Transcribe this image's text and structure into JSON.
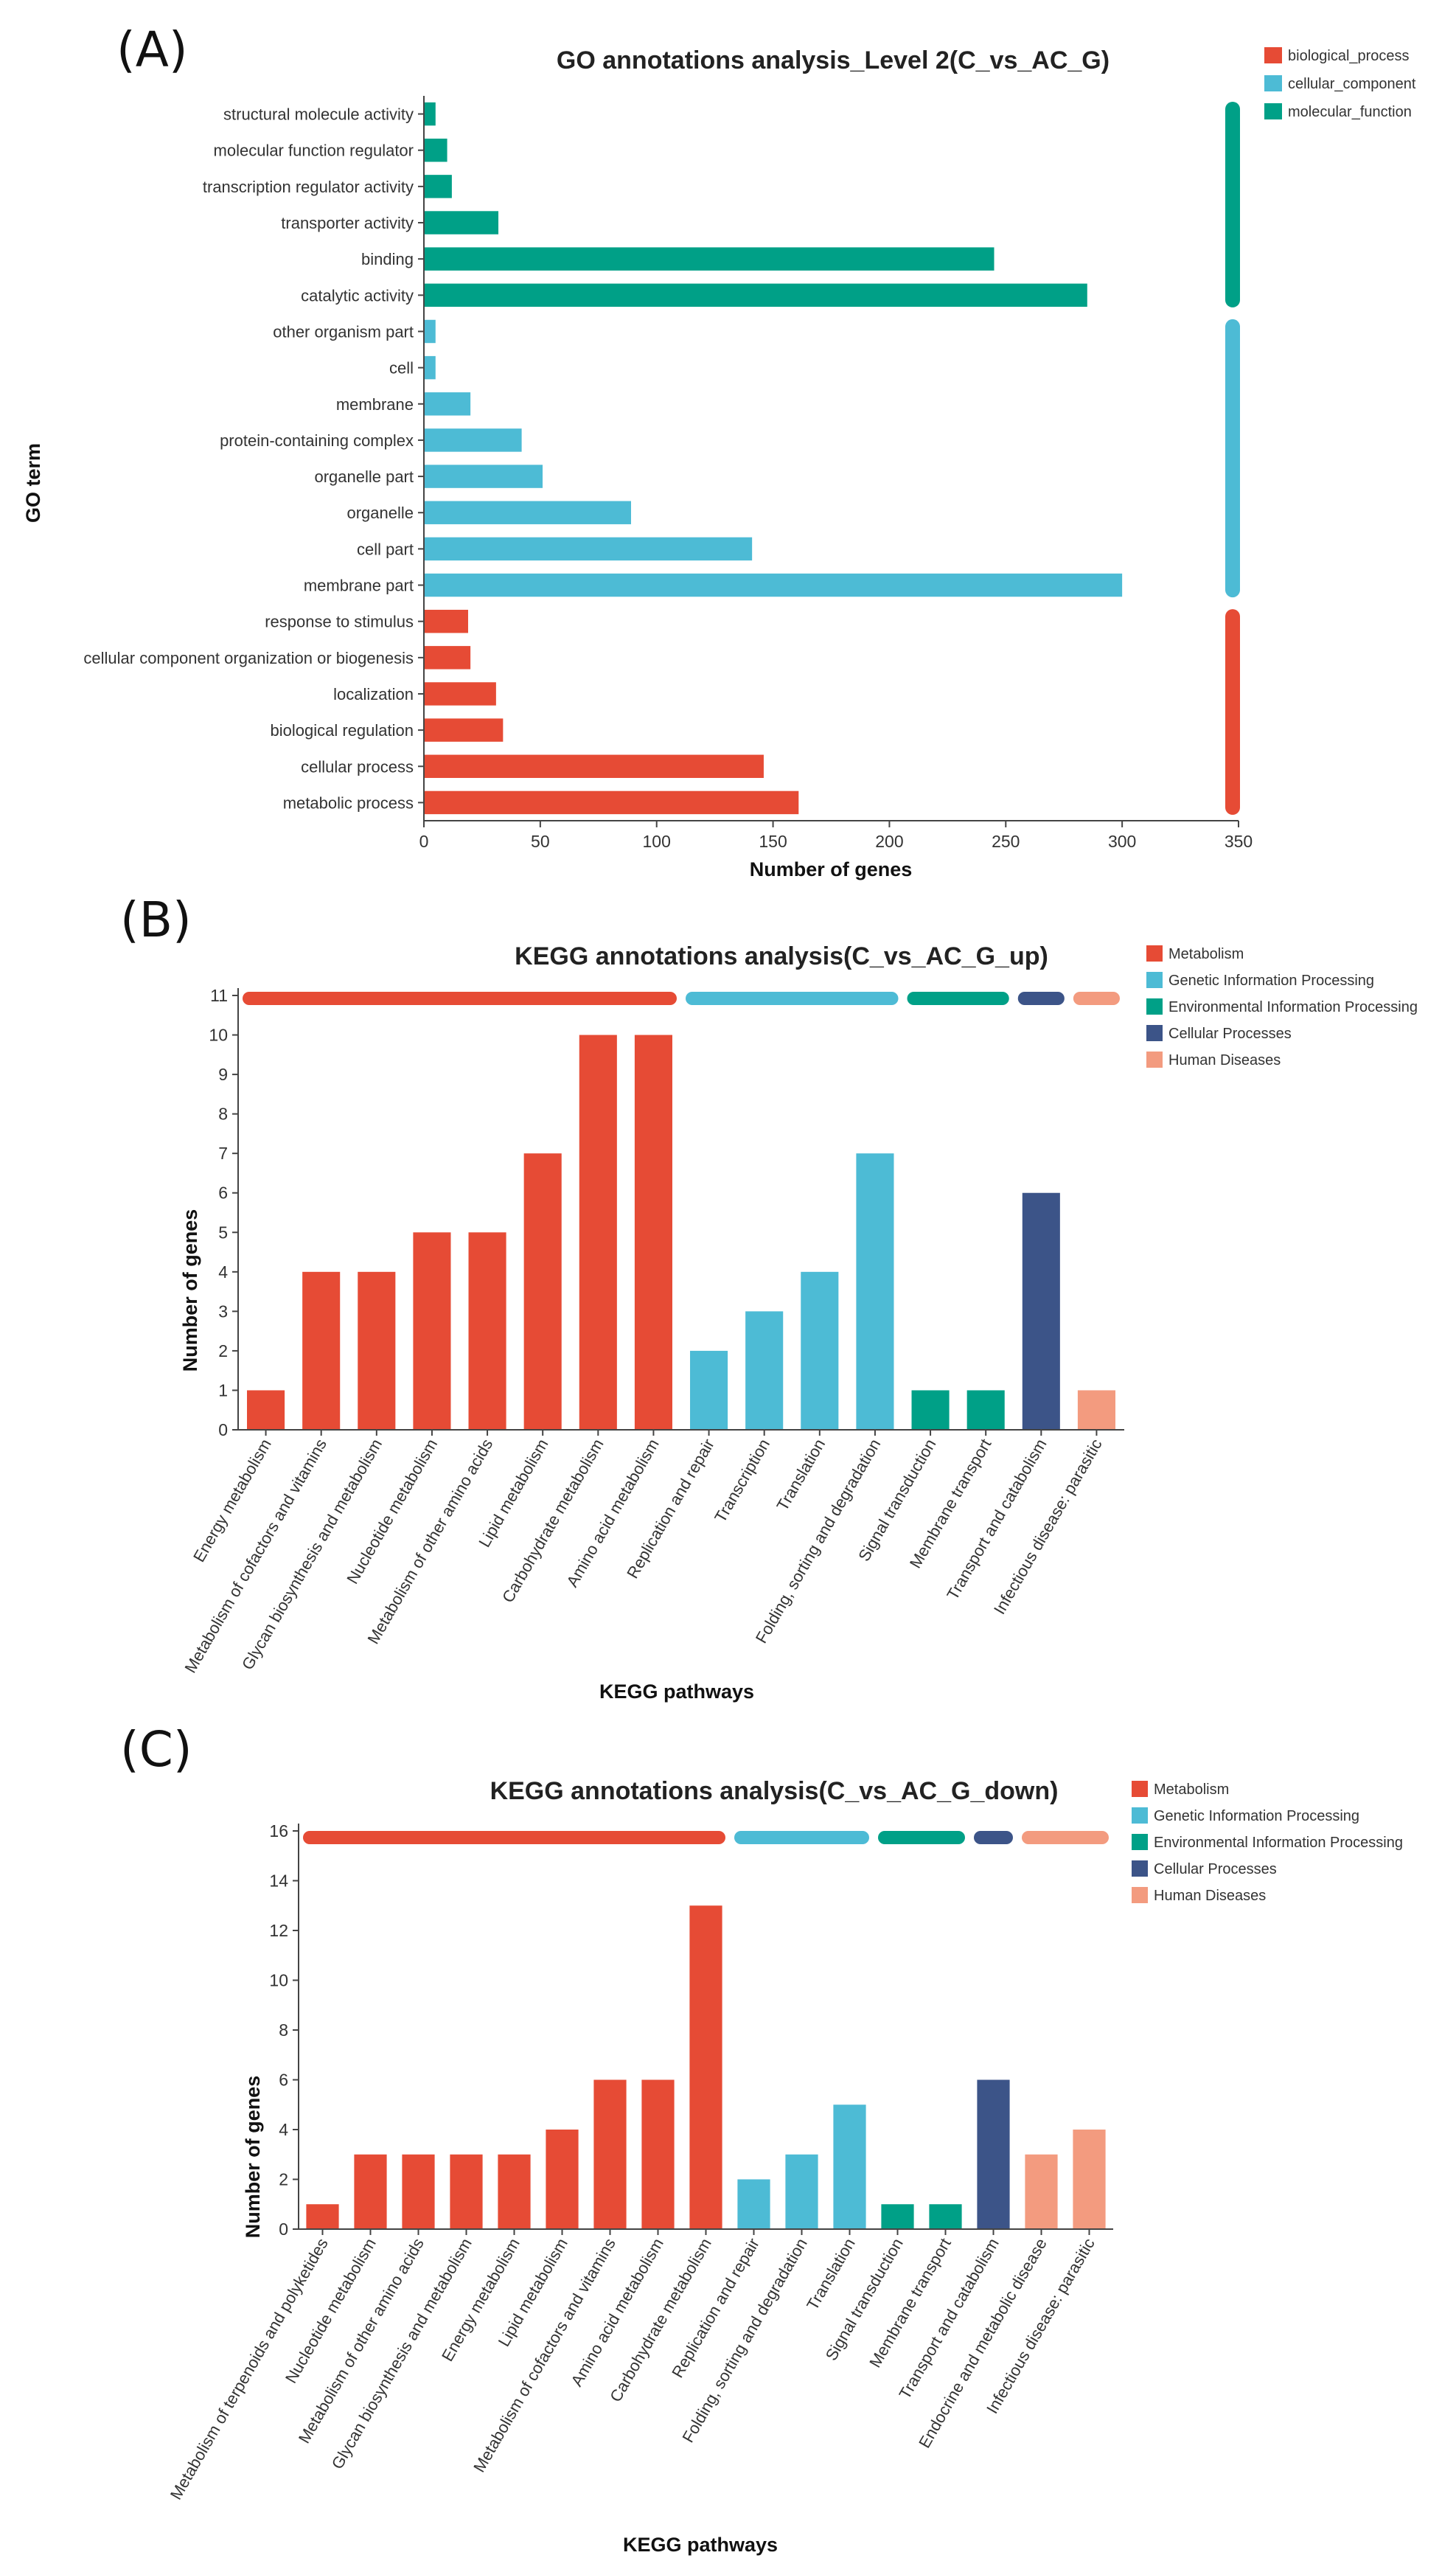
{
  "panels": {
    "a": "(A)",
    "b": "(B)",
    "c": "(C)"
  },
  "chart_data": [
    {
      "type": "bar",
      "orientation": "horizontal",
      "title": "GO annotations analysis_Level 2(C_vs_AC_G)",
      "xlabel": "Number of genes",
      "ylabel": "GO term",
      "xlim": [
        0,
        350
      ],
      "xticks": [
        "0",
        "50",
        "100",
        "150",
        "200",
        "250",
        "300",
        "350"
      ],
      "groups": [
        {
          "name": "biological_process",
          "color": "#e64b35"
        },
        {
          "name": "cellular_component",
          "color": "#4dbbd5"
        },
        {
          "name": "molecular_function",
          "color": "#00a087"
        }
      ],
      "categories": [
        "structural molecule activity",
        "molecular function regulator",
        "transcription regulator activity",
        "transporter activity",
        "binding",
        "catalytic activity",
        "other organism part",
        "cell",
        "membrane",
        "protein-containing complex",
        "organelle part",
        "organelle",
        "cell part",
        "membrane part",
        "response to stimulus",
        "cellular component organization or biogenesis",
        "localization",
        "biological regulation",
        "cellular process",
        "metabolic process"
      ],
      "values": [
        5,
        10,
        12,
        32,
        245,
        285,
        5,
        5,
        20,
        42,
        51,
        89,
        141,
        300,
        19,
        20,
        31,
        34,
        146,
        161
      ],
      "category_group": [
        2,
        2,
        2,
        2,
        2,
        2,
        1,
        1,
        1,
        1,
        1,
        1,
        1,
        1,
        0,
        0,
        0,
        0,
        0,
        0
      ]
    },
    {
      "type": "bar",
      "title": "KEGG annotations analysis(C_vs_AC_G_up)",
      "xlabel": "KEGG pathways",
      "ylabel": "Number of genes",
      "ylim": [
        0,
        11
      ],
      "yticks": [
        "0",
        "1",
        "2",
        "3",
        "4",
        "5",
        "6",
        "7",
        "8",
        "9",
        "10",
        "11"
      ],
      "groups": [
        {
          "name": "Metabolism",
          "color": "#e64b35"
        },
        {
          "name": "Genetic Information Processing",
          "color": "#4dbbd5"
        },
        {
          "name": "Environmental Information Processing",
          "color": "#00a087"
        },
        {
          "name": "Cellular Processes",
          "color": "#3c5488"
        },
        {
          "name": "Human Diseases",
          "color": "#f39b7f"
        }
      ],
      "categories": [
        "Energy metabolism",
        "Metabolism of cofactors and vitamins",
        "Glycan biosynthesis and metabolism",
        "Nucleotide metabolism",
        "Metabolism of other amino acids",
        "Lipid metabolism",
        "Carbohydrate metabolism",
        "Amino acid metabolism",
        "Replication and repair",
        "Transcription",
        "Translation",
        "Folding, sorting and degradation",
        "Signal transduction",
        "Membrane transport",
        "Transport and catabolism",
        "Infectious disease: parasitic"
      ],
      "values": [
        1,
        4,
        4,
        5,
        5,
        7,
        10,
        10,
        2,
        3,
        4,
        7,
        1,
        1,
        6,
        1
      ],
      "category_group": [
        0,
        0,
        0,
        0,
        0,
        0,
        0,
        0,
        1,
        1,
        1,
        1,
        2,
        2,
        3,
        4
      ]
    },
    {
      "type": "bar",
      "title": "KEGG annotations analysis(C_vs_AC_G_down)",
      "xlabel": "KEGG pathways",
      "ylabel": "Number of genes",
      "ylim": [
        0,
        16
      ],
      "yticks": [
        "0",
        "2",
        "4",
        "6",
        "8",
        "10",
        "12",
        "14",
        "16"
      ],
      "groups": [
        {
          "name": "Metabolism",
          "color": "#e64b35"
        },
        {
          "name": "Genetic Information Processing",
          "color": "#4dbbd5"
        },
        {
          "name": "Environmental Information Processing",
          "color": "#00a087"
        },
        {
          "name": "Cellular Processes",
          "color": "#3c5488"
        },
        {
          "name": "Human Diseases",
          "color": "#f39b7f"
        }
      ],
      "categories": [
        "Metabolism of terpenoids and polyketides",
        "Nucleotide metabolism",
        "Metabolism of other amino acids",
        "Glycan biosynthesis and metabolism",
        "Energy metabolism",
        "Lipid metabolism",
        "Metabolism of cofactors and vitamins",
        "Amino acid metabolism",
        "Carbohydrate metabolism",
        "Replication and repair",
        "Folding, sorting and degradation",
        "Translation",
        "Signal transduction",
        "Membrane transport",
        "Transport and catabolism",
        "Endocrine and metabolic disease",
        "Infectious disease: parasitic"
      ],
      "values": [
        1,
        3,
        3,
        3,
        3,
        4,
        6,
        6,
        13,
        2,
        3,
        5,
        1,
        1,
        6,
        3,
        4
      ],
      "category_group": [
        0,
        0,
        0,
        0,
        0,
        0,
        0,
        0,
        0,
        1,
        1,
        1,
        2,
        2,
        3,
        4,
        4
      ]
    }
  ]
}
